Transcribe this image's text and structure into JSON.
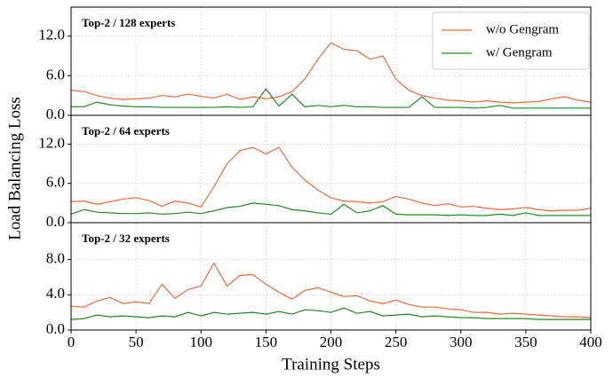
{
  "chart_data": [
    {
      "type": "line",
      "title": "Top-2 / 128 experts",
      "x": [
        0,
        10,
        20,
        30,
        40,
        50,
        60,
        70,
        80,
        90,
        100,
        110,
        120,
        130,
        140,
        150,
        160,
        170,
        180,
        190,
        200,
        210,
        220,
        230,
        240,
        250,
        260,
        270,
        280,
        290,
        300,
        310,
        320,
        330,
        340,
        350,
        360,
        370,
        380,
        390,
        400
      ],
      "series": [
        {
          "name": "w/o Gengram",
          "color": "#ee6a3d",
          "values": [
            3.8,
            3.6,
            3.0,
            2.6,
            2.4,
            2.5,
            2.6,
            3.0,
            2.8,
            3.2,
            2.9,
            2.6,
            3.2,
            2.4,
            2.8,
            2.5,
            2.8,
            3.6,
            5.5,
            8.5,
            11.0,
            10.0,
            9.8,
            8.5,
            9.0,
            5.5,
            3.8,
            3.0,
            2.6,
            2.3,
            2.2,
            2.0,
            2.2,
            2.0,
            1.9,
            2.0,
            2.1,
            2.5,
            2.8,
            2.3,
            2.0
          ]
        },
        {
          "name": "w/ Gengram",
          "color": "#1f8a1f",
          "values": [
            1.3,
            1.3,
            2.0,
            1.6,
            1.4,
            1.3,
            1.3,
            1.2,
            1.2,
            1.2,
            1.2,
            1.2,
            1.3,
            1.2,
            1.3,
            4.0,
            1.4,
            3.2,
            1.3,
            1.5,
            1.3,
            1.5,
            1.3,
            1.3,
            1.2,
            1.2,
            1.2,
            2.8,
            1.2,
            1.2,
            1.2,
            1.1,
            1.2,
            1.5,
            1.1,
            1.1,
            1.1,
            1.1,
            1.1,
            1.1,
            1.1
          ]
        }
      ],
      "xlim": [
        0,
        400
      ],
      "xticks": [
        0,
        50,
        100,
        150,
        200,
        250,
        300,
        350,
        400
      ],
      "ylim": [
        0,
        16.4
      ],
      "yticks": [
        {
          "value": 0,
          "label": "0.0"
        },
        {
          "value": 6,
          "label": "6.0"
        },
        {
          "value": 12,
          "label": "12.0"
        }
      ],
      "grid": true,
      "legend": "upper right"
    },
    {
      "type": "line",
      "title": "Top-2 / 64 experts",
      "ylabel": "Load Balancing Loss",
      "x": [
        0,
        10,
        20,
        30,
        40,
        50,
        60,
        70,
        80,
        90,
        100,
        110,
        120,
        130,
        140,
        150,
        160,
        170,
        180,
        190,
        200,
        210,
        220,
        230,
        240,
        250,
        260,
        270,
        280,
        290,
        300,
        310,
        320,
        330,
        340,
        350,
        360,
        370,
        380,
        390,
        400
      ],
      "series": [
        {
          "color": "#ee6a3d",
          "values": [
            3.2,
            3.3,
            2.8,
            3.2,
            3.6,
            3.8,
            3.4,
            2.5,
            3.3,
            3.0,
            2.4,
            5.5,
            9.0,
            11.0,
            11.5,
            10.5,
            11.5,
            8.5,
            6.5,
            5.0,
            3.8,
            3.3,
            3.2,
            3.0,
            3.2,
            4.0,
            3.6,
            3.0,
            2.6,
            2.9,
            2.4,
            2.5,
            2.2,
            2.0,
            2.1,
            2.3,
            2.0,
            1.8,
            1.9,
            1.9,
            2.2
          ]
        },
        {
          "color": "#1f8a1f",
          "values": [
            1.3,
            2.0,
            1.6,
            1.5,
            1.4,
            1.4,
            1.5,
            1.3,
            1.4,
            1.6,
            1.4,
            1.8,
            2.3,
            2.5,
            3.0,
            2.8,
            2.6,
            2.0,
            1.8,
            1.5,
            1.3,
            2.8,
            1.5,
            1.8,
            2.6,
            1.3,
            1.2,
            1.2,
            1.2,
            1.1,
            1.2,
            1.1,
            1.1,
            1.3,
            1.1,
            1.5,
            1.1,
            1.1,
            1.1,
            1.1,
            1.1
          ]
        }
      ],
      "xlim": [
        0,
        400
      ],
      "xticks": [
        0,
        50,
        100,
        150,
        200,
        250,
        300,
        350,
        400
      ],
      "ylim": [
        0,
        16.4
      ],
      "yticks": [
        {
          "value": 0,
          "label": "0.0"
        },
        {
          "value": 6,
          "label": "6.0"
        },
        {
          "value": 12,
          "label": "12.0"
        }
      ],
      "grid": true
    },
    {
      "type": "line",
      "title": "Top-2 / 32 experts",
      "xlabel": "Training Steps",
      "x": [
        0,
        10,
        20,
        30,
        40,
        50,
        60,
        70,
        80,
        90,
        100,
        110,
        120,
        130,
        140,
        150,
        160,
        170,
        180,
        190,
        200,
        210,
        220,
        230,
        240,
        250,
        260,
        270,
        280,
        290,
        300,
        310,
        320,
        330,
        340,
        350,
        360,
        370,
        380,
        390,
        400
      ],
      "series": [
        {
          "color": "#ee6a3d",
          "values": [
            2.7,
            2.6,
            3.3,
            3.7,
            3.0,
            3.2,
            3.0,
            5.2,
            3.6,
            4.6,
            5.0,
            7.6,
            5.0,
            6.2,
            6.3,
            5.2,
            4.3,
            3.5,
            4.5,
            4.8,
            4.3,
            3.8,
            3.9,
            3.3,
            3.0,
            3.4,
            2.9,
            2.6,
            2.6,
            2.4,
            2.3,
            2.0,
            2.0,
            1.8,
            1.9,
            1.8,
            1.7,
            1.6,
            1.5,
            1.5,
            1.4
          ]
        },
        {
          "color": "#1f8a1f",
          "values": [
            1.2,
            1.3,
            1.7,
            1.5,
            1.6,
            1.5,
            1.4,
            1.6,
            1.5,
            2.0,
            1.6,
            2.0,
            1.8,
            1.9,
            2.0,
            1.8,
            2.1,
            1.8,
            2.3,
            2.2,
            2.0,
            2.5,
            1.9,
            2.1,
            1.6,
            1.7,
            1.8,
            1.5,
            1.6,
            1.5,
            1.4,
            1.4,
            1.3,
            1.3,
            1.3,
            1.3,
            1.2,
            1.2,
            1.2,
            1.2,
            1.2
          ]
        }
      ],
      "xlim": [
        0,
        400
      ],
      "xticks": [
        0,
        50,
        100,
        150,
        200,
        250,
        300,
        350,
        400
      ],
      "ylim": [
        0,
        12.2
      ],
      "yticks": [
        {
          "value": 0,
          "label": "0.0"
        },
        {
          "value": 4,
          "label": "4.0"
        },
        {
          "value": 8,
          "label": "8.0"
        }
      ],
      "grid": true
    }
  ]
}
